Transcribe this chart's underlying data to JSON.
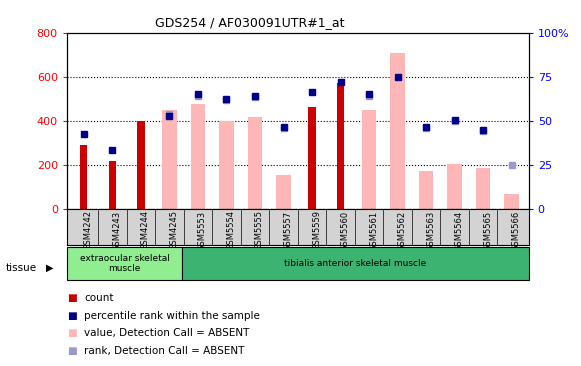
{
  "title": "GDS254 / AF030091UTR#1_at",
  "categories": [
    "GSM4242",
    "GSM4243",
    "GSM4244",
    "GSM4245",
    "GSM5553",
    "GSM5554",
    "GSM5555",
    "GSM5557",
    "GSM5559",
    "GSM5560",
    "GSM5561",
    "GSM5562",
    "GSM5563",
    "GSM5564",
    "GSM5565",
    "GSM5566"
  ],
  "tissue_groups": [
    {
      "label": "extraocular skeletal\nmuscle",
      "start": 0,
      "end": 4,
      "color": "#90ee90"
    },
    {
      "label": "tibialis anterior skeletal muscle",
      "start": 4,
      "end": 16,
      "color": "#3cb371"
    }
  ],
  "red_bars": [
    290,
    215,
    400,
    null,
    null,
    null,
    null,
    null,
    465,
    570,
    null,
    null,
    null,
    null,
    null,
    null
  ],
  "pink_bars": [
    null,
    null,
    null,
    450,
    475,
    400,
    415,
    155,
    null,
    null,
    450,
    710,
    170,
    205,
    185,
    65
  ],
  "blue_squares_val": [
    340,
    265,
    null,
    420,
    520,
    500,
    515,
    370,
    530,
    575,
    520,
    600,
    370,
    405,
    360,
    null
  ],
  "lavender_squares_val": [
    null,
    null,
    null,
    430,
    515,
    495,
    510,
    365,
    null,
    null,
    515,
    null,
    365,
    400,
    355,
    200
  ],
  "left_ylim": [
    0,
    800
  ],
  "right_ylim": [
    0,
    100
  ],
  "left_yticks": [
    0,
    200,
    400,
    600,
    800
  ],
  "right_yticks": [
    0,
    25,
    50,
    75,
    100
  ],
  "right_yticklabels": [
    "0",
    "25",
    "50",
    "75",
    "100%"
  ],
  "red_color": "#cc0000",
  "pink_color": "#ffb6b6",
  "blue_color": "#00008b",
  "lavender_color": "#9999cc",
  "legend_items": [
    {
      "label": "count",
      "color": "#cc0000"
    },
    {
      "label": "percentile rank within the sample",
      "color": "#00008b"
    },
    {
      "label": "value, Detection Call = ABSENT",
      "color": "#ffb6b6"
    },
    {
      "label": "rank, Detection Call = ABSENT",
      "color": "#9999cc"
    }
  ],
  "tissue_label": "tissue",
  "background_color": "#ffffff",
  "xtick_bg_color": "#d3d3d3"
}
